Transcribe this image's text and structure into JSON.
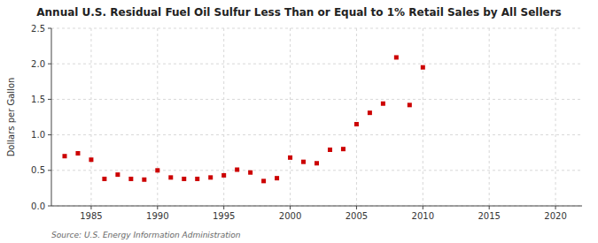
{
  "chart_data": {
    "type": "scatter",
    "title": "Annual U.S. Residual Fuel Oil Sulfur Less Than or Equal to 1% Retail Sales by All Sellers",
    "y_label": "Dollars per Gallon",
    "annotations": [
      "Source: U.S. Energy Information Administration"
    ],
    "color": "#cc0000",
    "marker": "square",
    "grid": true,
    "xlim": [
      1982,
      2022
    ],
    "ylim": [
      0.0,
      2.5
    ],
    "xticks": [
      1985,
      1990,
      1995,
      2000,
      2005,
      2010,
      2015,
      2020
    ],
    "yticks": [
      {
        "value": 0.0,
        "label": "0.0"
      },
      0.5,
      {
        "value": 1.0,
        "label": "1.0"
      },
      1.5,
      {
        "value": 2.0,
        "label": "2.0"
      },
      2.5
    ],
    "x": [
      1983,
      1984,
      1985,
      1986,
      1987,
      1988,
      1989,
      1990,
      1991,
      1992,
      1993,
      1994,
      1995,
      1996,
      1997,
      1998,
      1999,
      2000,
      2001,
      2002,
      2003,
      2004,
      2005,
      2006,
      2007,
      2008,
      2009,
      2010
    ],
    "values": [
      0.7,
      0.74,
      0.65,
      0.38,
      0.44,
      0.38,
      0.37,
      0.5,
      0.4,
      0.38,
      0.38,
      0.4,
      0.43,
      0.51,
      0.47,
      0.35,
      0.39,
      0.68,
      0.62,
      0.6,
      0.79,
      0.8,
      1.15,
      1.31,
      1.44,
      2.09,
      1.42,
      1.95
    ]
  }
}
